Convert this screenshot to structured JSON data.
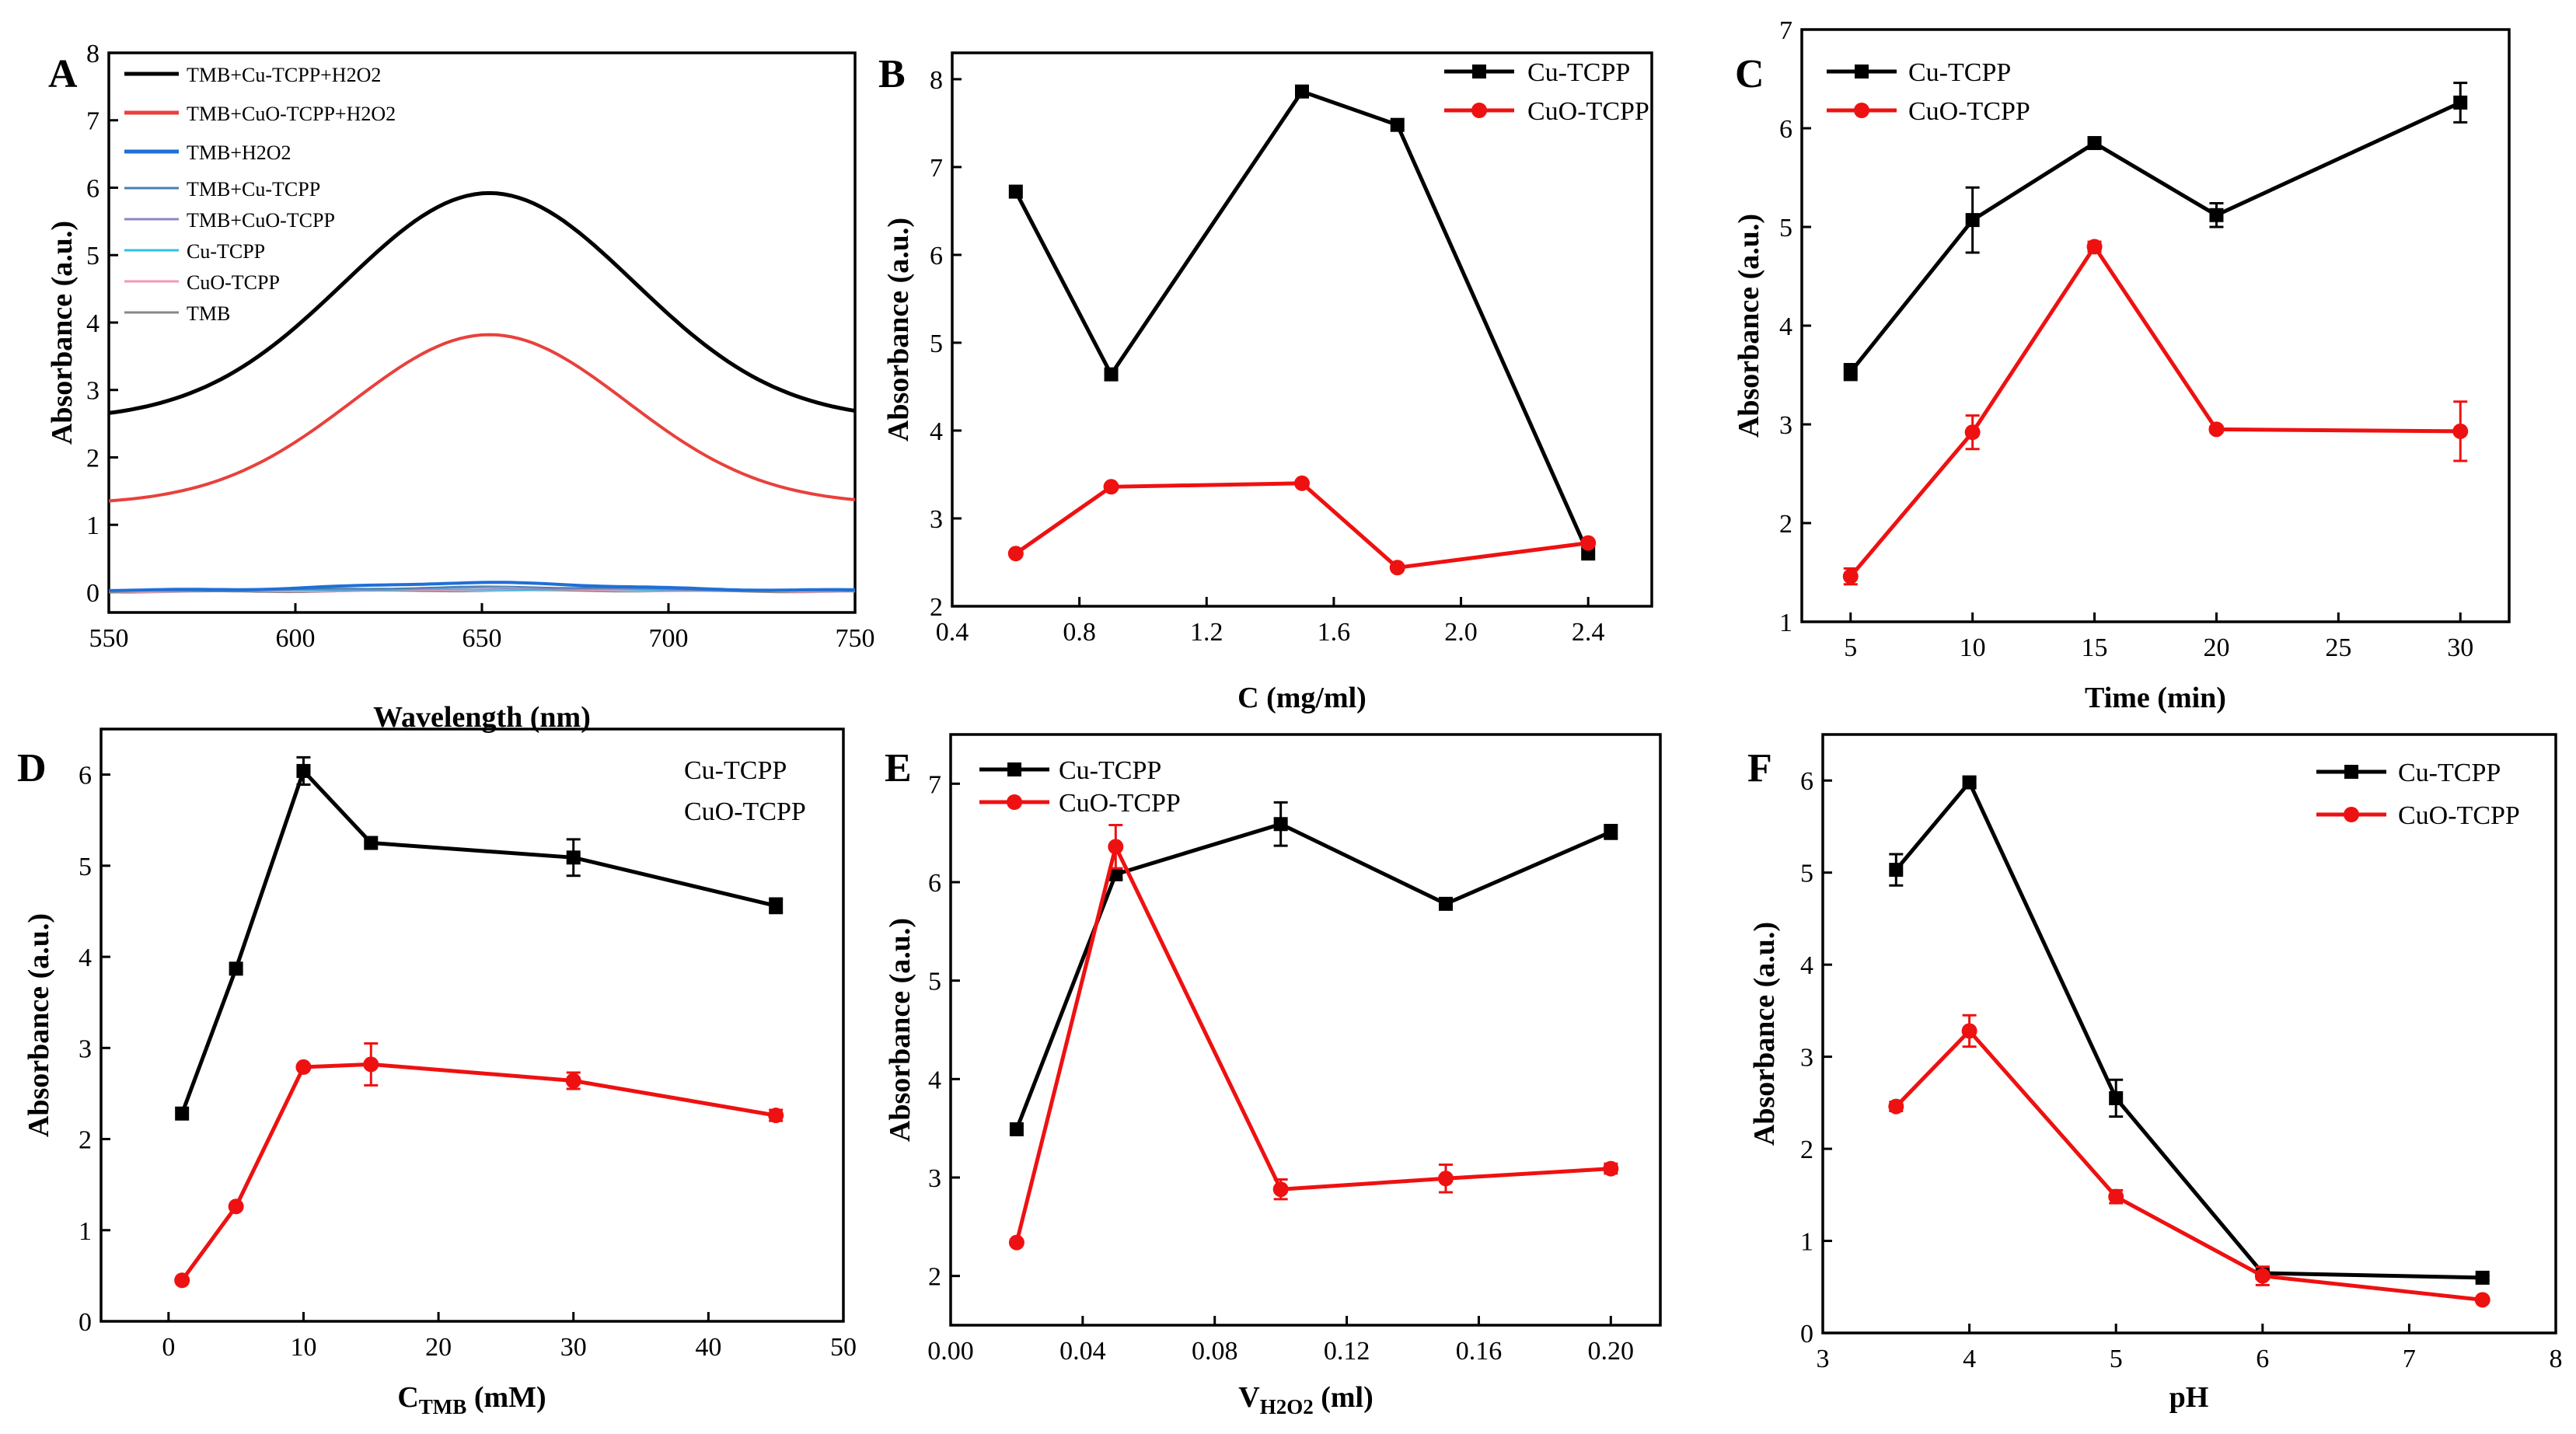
{
  "figure": {
    "panels": [
      "A",
      "B",
      "C",
      "D",
      "E",
      "F"
    ]
  },
  "colors": {
    "black_series": "#000000",
    "red_series": "#ee1111",
    "spectra": [
      "#000000",
      "#e8413c",
      "#1f6fd6",
      "#4a7fb0",
      "#8e86c4",
      "#2ec1e6",
      "#f29ab8",
      "#888888"
    ]
  },
  "chart_data": [
    {
      "panel": "A",
      "type": "line",
      "xlabel": "Wavelength (nm)",
      "ylabel": "Absorbance (a.u.)",
      "xlim": [
        550,
        750
      ],
      "ylim": [
        -0.3,
        8
      ],
      "xticks": [
        "550",
        "600",
        "650",
        "700",
        "750"
      ],
      "yticks": [
        "0",
        "1",
        "2",
        "3",
        "4",
        "5",
        "6",
        "7",
        "8"
      ],
      "legend_position": "top-left",
      "series": [
        {
          "name": "TMB+Cu-TCPP+H2O2",
          "peak": 5.92,
          "peak_x": 652,
          "base": 2.55,
          "width": 55,
          "weight": 5
        },
        {
          "name": "TMB+CuO-TCPP+H2O2",
          "peak": 3.82,
          "peak_x": 652,
          "base": 1.3,
          "width": 52,
          "weight": 4
        },
        {
          "name": "TMB+H2O2",
          "peak": 0.14,
          "peak_x": 650,
          "base": 0.03,
          "width": 45,
          "weight": 4
        },
        {
          "name": "TMB+Cu-TCPP",
          "peak": 0.08,
          "peak_x": 655,
          "base": 0.02,
          "width": 50,
          "weight": 2
        },
        {
          "name": "TMB+CuO-TCPP",
          "peak": 0.06,
          "peak_x": 655,
          "base": 0.02,
          "width": 50,
          "weight": 2
        },
        {
          "name": "Cu-TCPP",
          "peak": 0.04,
          "peak_x": 660,
          "base": 0.02,
          "width": 60,
          "weight": 2
        },
        {
          "name": "CuO-TCPP",
          "peak": 0.03,
          "peak_x": 660,
          "base": 0.01,
          "width": 60,
          "weight": 2
        },
        {
          "name": "TMB",
          "peak": 0.02,
          "peak_x": 660,
          "base": 0.0,
          "width": 60,
          "weight": 2
        }
      ]
    },
    {
      "panel": "B",
      "type": "line",
      "xlabel": "C (mg/ml)",
      "ylabel": "Absorbance (a.u.)",
      "xlim": [
        0.4,
        2.6
      ],
      "ylim": [
        2,
        8.3
      ],
      "xticks": [
        "0.4",
        "0.8",
        "1.2",
        "1.6",
        "2.0",
        "2.4"
      ],
      "yticks": [
        "2",
        "3",
        "4",
        "5",
        "6",
        "7",
        "8"
      ],
      "legend_position": "top-right",
      "series": [
        {
          "name": "Cu-TCPP",
          "x": [
            0.6,
            0.9,
            1.5,
            1.8,
            2.4
          ],
          "values": [
            6.72,
            4.64,
            7.86,
            7.48,
            2.6
          ],
          "err": [
            0,
            0,
            0,
            0,
            0
          ]
        },
        {
          "name": "CuO-TCPP",
          "x": [
            0.6,
            0.9,
            1.5,
            1.8,
            2.4
          ],
          "values": [
            2.6,
            3.36,
            3.4,
            2.44,
            2.72
          ],
          "err": [
            0,
            0,
            0,
            0,
            0
          ]
        }
      ]
    },
    {
      "panel": "C",
      "type": "line",
      "xlabel": "Time (min)",
      "ylabel": "Absorbance (a.u.)",
      "xlim": [
        3,
        32
      ],
      "ylim": [
        1,
        7
      ],
      "xticks": [
        "5",
        "10",
        "15",
        "20",
        "25",
        "30"
      ],
      "yticks": [
        "1",
        "2",
        "3",
        "4",
        "5",
        "6",
        "7"
      ],
      "legend_position": "top-left",
      "series": [
        {
          "name": "Cu-TCPP",
          "x": [
            5,
            10,
            15,
            20,
            30
          ],
          "values": [
            3.53,
            5.07,
            5.85,
            5.12,
            6.26
          ],
          "err": [
            0.08,
            0.33,
            0.03,
            0.12,
            0.2
          ]
        },
        {
          "name": "CuO-TCPP",
          "x": [
            5,
            10,
            15,
            20,
            30
          ],
          "values": [
            1.46,
            2.92,
            4.8,
            2.95,
            2.93
          ],
          "err": [
            0.08,
            0.17,
            0.05,
            0.03,
            0.3
          ]
        }
      ]
    },
    {
      "panel": "D",
      "type": "line",
      "xlabel": "C",
      "xlabel_sub": "TMB",
      "xlabel_unit": " (mM)",
      "ylabel": "Absorbance (a.u.)",
      "xlim": [
        -5,
        50
      ],
      "ylim": [
        0,
        6.5
      ],
      "xticks": [
        "0",
        "10",
        "20",
        "30",
        "40",
        "50"
      ],
      "yticks": [
        "0",
        "1",
        "2",
        "3",
        "4",
        "5",
        "6"
      ],
      "legend_position": "top-right",
      "series": [
        {
          "name": "Cu-TCPP",
          "x": [
            1,
            5,
            10,
            15,
            30,
            45
          ],
          "values": [
            2.28,
            3.87,
            6.04,
            5.25,
            5.09,
            4.56
          ],
          "err": [
            0,
            0,
            0.15,
            0,
            0.2,
            0.08
          ]
        },
        {
          "name": "CuO-TCPP",
          "x": [
            1,
            5,
            10,
            15,
            30,
            45
          ],
          "values": [
            0.45,
            1.26,
            2.79,
            2.82,
            2.64,
            2.26
          ],
          "err": [
            0,
            0,
            0,
            0.23,
            0.09,
            0.06
          ]
        }
      ]
    },
    {
      "panel": "E",
      "type": "line",
      "xlabel": "V",
      "xlabel_sub": "H2O2",
      "xlabel_unit": " (ml)",
      "ylabel": "Absorbance (a.u.)",
      "xlim": [
        0,
        0.215
      ],
      "ylim": [
        1.5,
        7.5
      ],
      "xticks": [
        "0.00",
        "0.04",
        "0.08",
        "0.12",
        "0.16",
        "0.20"
      ],
      "yticks": [
        "2",
        "3",
        "4",
        "5",
        "6",
        "7"
      ],
      "legend_position": "top-left",
      "series": [
        {
          "name": "Cu-TCPP",
          "x": [
            0.02,
            0.05,
            0.1,
            0.15,
            0.2
          ],
          "values": [
            3.49,
            6.08,
            6.59,
            5.78,
            6.51
          ],
          "err": [
            0,
            0.05,
            0.22,
            0.03,
            0.07
          ]
        },
        {
          "name": "CuO-TCPP",
          "x": [
            0.02,
            0.05,
            0.1,
            0.15,
            0.2
          ],
          "values": [
            2.34,
            6.36,
            2.88,
            2.99,
            3.09
          ],
          "err": [
            0,
            0.22,
            0.1,
            0.14,
            0.05
          ]
        }
      ]
    },
    {
      "panel": "F",
      "type": "line",
      "xlabel": "pH",
      "ylabel": "Absorbance (a.u.)",
      "xlim": [
        3,
        8
      ],
      "ylim": [
        0,
        6.5
      ],
      "xticks": [
        "3",
        "4",
        "5",
        "6",
        "7",
        "8"
      ],
      "yticks": [
        "0",
        "1",
        "2",
        "3",
        "4",
        "5",
        "6"
      ],
      "legend_position": "top-right",
      "series": [
        {
          "name": "Cu-TCPP",
          "x": [
            3.5,
            4,
            5,
            6,
            7.5
          ],
          "values": [
            5.03,
            5.98,
            2.55,
            0.65,
            0.6
          ],
          "err": [
            0.17,
            0.04,
            0.2,
            0.03,
            0.02
          ]
        },
        {
          "name": "CuO-TCPP",
          "x": [
            3.5,
            4,
            5,
            6,
            7.5
          ],
          "values": [
            2.46,
            3.28,
            1.48,
            0.62,
            0.36
          ],
          "err": [
            0.05,
            0.17,
            0.07,
            0.1,
            0.02
          ]
        }
      ]
    }
  ]
}
